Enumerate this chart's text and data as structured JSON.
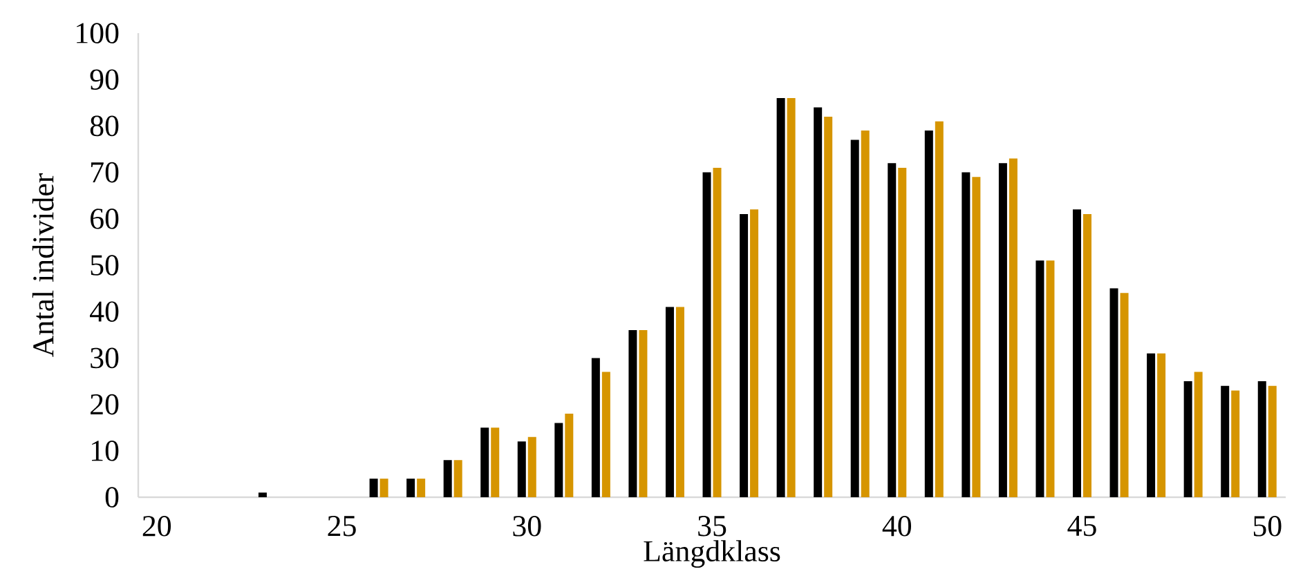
{
  "chart_data": {
    "type": "bar",
    "xlabel": "Längdklass",
    "ylabel": "Antal individer",
    "x": [
      20,
      21,
      22,
      23,
      24,
      25,
      26,
      27,
      28,
      29,
      30,
      31,
      32,
      33,
      34,
      35,
      36,
      37,
      38,
      39,
      40,
      41,
      42,
      43,
      44,
      45,
      46,
      47,
      48,
      49,
      50
    ],
    "xlim": [
      19.5,
      50.5
    ],
    "xticks": [
      20,
      25,
      30,
      35,
      40,
      45,
      50
    ],
    "ylim": [
      0,
      100
    ],
    "yticks": [
      0,
      10,
      20,
      30,
      40,
      50,
      60,
      70,
      80,
      90,
      100
    ],
    "grid": false,
    "series": [
      {
        "color": "#000000",
        "values": [
          0,
          0,
          0,
          1,
          0,
          0,
          4,
          4,
          8,
          15,
          12,
          16,
          30,
          36,
          41,
          70,
          61,
          86,
          84,
          77,
          72,
          79,
          70,
          72,
          51,
          62,
          45,
          31,
          25,
          24,
          25
        ]
      },
      {
        "color": "#d69500",
        "values": [
          0,
          0,
          0,
          0,
          0,
          0,
          4,
          4,
          8,
          15,
          13,
          18,
          27,
          36,
          41,
          71,
          62,
          86,
          82,
          79,
          71,
          81,
          69,
          73,
          51,
          61,
          44,
          31,
          27,
          23,
          24
        ]
      }
    ]
  }
}
